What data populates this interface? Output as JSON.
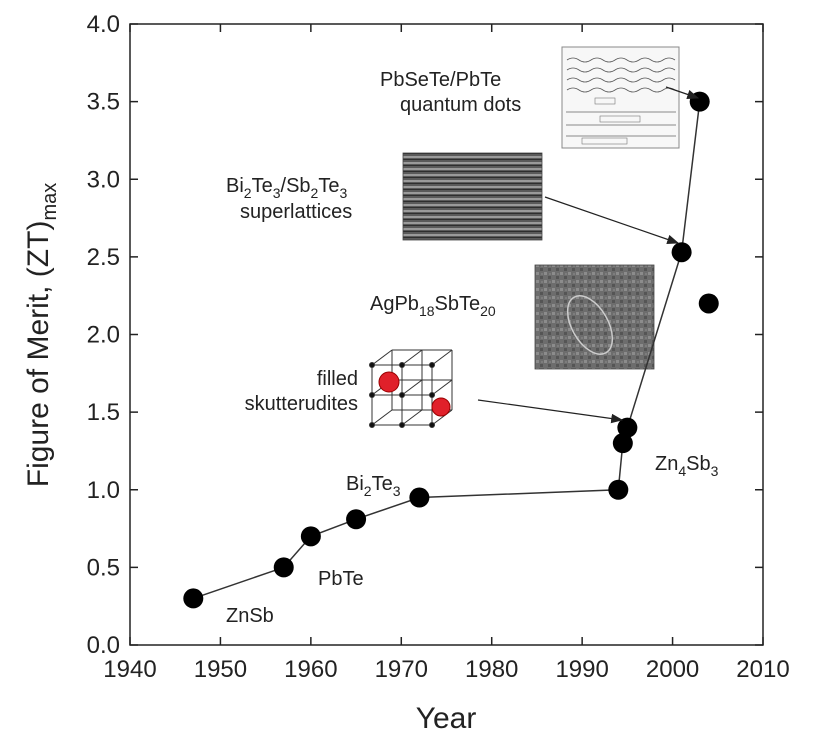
{
  "chart_data": {
    "type": "scatter",
    "xlabel": "Year",
    "ylabel": "Figure of Merit, (ZT)",
    "ylabel_sub": "max",
    "xlim": [
      1940,
      2010
    ],
    "ylim": [
      0,
      4.0
    ],
    "xticks": [
      "1940",
      "1950",
      "1960",
      "1970",
      "1980",
      "1990",
      "2000",
      "2010"
    ],
    "yticks": [
      "0.0",
      "0.5",
      "1.0",
      "1.5",
      "2.0",
      "2.5",
      "3.0",
      "3.5",
      "4.0"
    ],
    "points": [
      {
        "x": 1947,
        "y": 0.3
      },
      {
        "x": 1957,
        "y": 0.5
      },
      {
        "x": 1960,
        "y": 0.7
      },
      {
        "x": 1965,
        "y": 0.81
      },
      {
        "x": 1972,
        "y": 0.95
      },
      {
        "x": 1994,
        "y": 1.0
      },
      {
        "x": 1994.5,
        "y": 1.3
      },
      {
        "x": 1995,
        "y": 1.4
      },
      {
        "x": 2001,
        "y": 2.53
      },
      {
        "x": 2003,
        "y": 3.5
      },
      {
        "x": 2004,
        "y": 2.2
      }
    ],
    "line_order": [
      0,
      1,
      2,
      3,
      4,
      5,
      6,
      7,
      8,
      9
    ],
    "annotations": {
      "zn_sb": "ZnSb",
      "pb_te": "PbTe",
      "bi2te3": {
        "a": "Bi",
        "b": "2",
        "c": "Te",
        "d": "3"
      },
      "skutterudites": {
        "line1": "filled",
        "line2": "skutterudites"
      },
      "agpb": {
        "a": "AgPb",
        "b": "18",
        "c": "SbTe",
        "d": "20"
      },
      "superlattices": {
        "a": "Bi",
        "b": "2",
        "c": "Te",
        "d": "3",
        "e": "/Sb",
        "f": "2",
        "g": "Te",
        "h": "3",
        "line2": "superlattices"
      },
      "qdots": {
        "line1": "PbSeTe/PbTe",
        "line2": "quantum dots"
      },
      "zn4sb3": {
        "a": "Zn",
        "b": "4",
        "c": "Sb",
        "d": "3"
      }
    },
    "marker_color": "#000000",
    "line_color": "#333333"
  }
}
